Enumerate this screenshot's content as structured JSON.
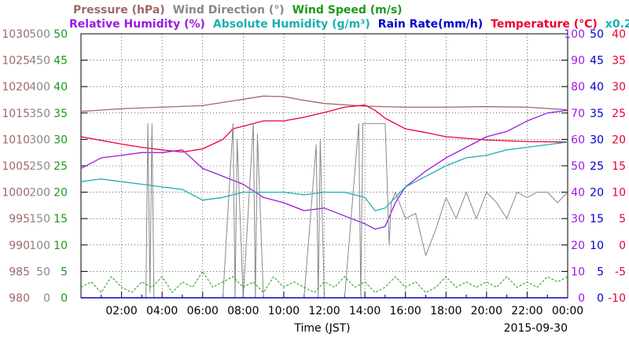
{
  "chart_data": {
    "type": "line",
    "date_label": "2015-09-30",
    "xlabel": "Time (JST)",
    "x_ticks": [
      "02:00",
      "04:00",
      "06:00",
      "08:00",
      "10:00",
      "12:00",
      "14:00",
      "16:00",
      "18:00",
      "20:00",
      "22:00",
      "00:00"
    ],
    "xlim": [
      0,
      24
    ],
    "grid": true,
    "legend_row1": [
      {
        "text": "Pressure (hPa)",
        "color": "#a06868"
      },
      {
        "text": "Wind Direction (°)",
        "color": "#888888"
      },
      {
        "text": "Wind Speed (m/s)",
        "color": "#1a9a1a"
      }
    ],
    "legend_row2": [
      {
        "text": "Relative Humidity (%)",
        "color": "#9a1ae0"
      },
      {
        "text": "Absolute Humidity (g/m³)",
        "color": "#1ab0b0"
      },
      {
        "text": "Rain Rate(mm/h)",
        "color": "#0000cc"
      },
      {
        "text": "Temperature (°C)",
        "color": "#ee0033"
      },
      {
        "text": "x0.2",
        "color": "#1ab0b0"
      }
    ],
    "axes": {
      "pressure": {
        "color": "#a06868",
        "ticks": [
          "980",
          "985",
          "990",
          "995",
          "1000",
          "1005",
          "1010",
          "1015",
          "1020",
          "1025",
          "1030"
        ]
      },
      "wind_direction": {
        "color": "#888888",
        "ticks": [
          "0",
          "50",
          "100",
          "150",
          "200",
          "250",
          "300",
          "350",
          "400",
          "450",
          "500"
        ]
      },
      "wind_speed": {
        "color": "#1a9a1a",
        "ticks": [
          "0",
          "5",
          "10",
          "15",
          "20",
          "25",
          "30",
          "35",
          "40",
          "45",
          "50"
        ]
      },
      "humidity": {
        "color": "#9a1ae0",
        "ticks": [
          "0",
          "10",
          "20",
          "30",
          "40",
          "50",
          "60",
          "70",
          "80",
          "90",
          "100"
        ]
      },
      "rain_rate": {
        "color": "#0000cc",
        "ticks": [
          "0",
          "5",
          "10",
          "15",
          "20",
          "25",
          "30",
          "35",
          "40",
          "45",
          "50"
        ]
      },
      "temperature": {
        "color": "#ee0033",
        "ticks": [
          "-10",
          "-5",
          "0",
          "5",
          "10",
          "15",
          "20",
          "25",
          "30",
          "35",
          "40"
        ]
      }
    },
    "series": [
      {
        "name": "Pressure (hPa)",
        "color": "#a06868",
        "x": [
          0,
          2,
          4,
          6,
          8,
          9,
          10,
          11,
          12,
          14,
          16,
          18,
          20,
          22,
          24
        ],
        "y": [
          1015.3,
          1015.8,
          1016.1,
          1016.4,
          1017.6,
          1018.2,
          1018.1,
          1017.4,
          1016.8,
          1016.3,
          1016.1,
          1016.1,
          1016.2,
          1016.1,
          1015.6
        ]
      },
      {
        "name": "Temperature (°C)",
        "color": "#ee0033",
        "x": [
          0,
          1,
          2,
          3,
          4,
          5,
          6,
          7,
          7.5,
          8,
          9,
          10,
          11,
          12,
          13,
          14,
          14.5,
          15,
          16,
          17,
          18,
          20,
          22,
          24
        ],
        "y": [
          20.5,
          19.8,
          19.1,
          18.5,
          18.0,
          17.6,
          18.2,
          20.0,
          22.0,
          22.5,
          23.5,
          23.5,
          24.2,
          25.1,
          26.1,
          26.5,
          25.5,
          24.0,
          22.0,
          21.3,
          20.5,
          19.9,
          19.6,
          19.5
        ]
      },
      {
        "name": "Relative Humidity (%)",
        "color": "#9a1ae0",
        "x": [
          0,
          1,
          2,
          3,
          4,
          5,
          6,
          7,
          8,
          9,
          10,
          11,
          12,
          13,
          14,
          14.5,
          15,
          15.5,
          16,
          17,
          18,
          19,
          20,
          21,
          22,
          23,
          24
        ],
        "y": [
          49,
          53,
          54,
          55,
          55,
          56,
          49,
          46,
          43,
          38,
          36,
          33,
          34,
          31,
          28,
          26,
          27,
          36,
          42,
          48,
          53,
          57,
          61,
          63,
          67,
          70,
          71
        ]
      },
      {
        "name": "Absolute Humidity (g/m³)",
        "color": "#1ab0b0",
        "x": [
          0,
          1,
          2,
          3,
          4,
          5,
          6,
          7,
          8,
          9,
          10,
          11,
          12,
          13,
          14,
          14.5,
          15,
          16,
          17,
          18,
          19,
          20,
          21,
          22,
          23,
          24
        ],
        "y": [
          44,
          45,
          44,
          43,
          42,
          41,
          37,
          38,
          40,
          40,
          40,
          39,
          40,
          40,
          38,
          33,
          34,
          42,
          46,
          50,
          53,
          54,
          56,
          57,
          58,
          59
        ]
      },
      {
        "name": "Wind Direction (°)",
        "color": "#888888",
        "x": [
          0,
          3.2,
          3.3,
          3.4,
          3.5,
          3.6,
          4,
          5,
          7,
          7.5,
          7.6,
          7.7,
          8,
          8.5,
          8.6,
          8.7,
          9,
          11,
          11.6,
          11.7,
          11.8,
          12,
          13,
          13.7,
          13.8,
          13.9,
          14,
          14.3,
          15,
          15.2,
          15.3,
          15.5,
          16,
          16.5,
          17,
          17.5,
          18,
          18.5,
          19,
          19.5,
          20,
          20.5,
          21,
          21.5,
          22,
          22.5,
          23,
          23.5,
          24
        ],
        "y": [
          0,
          0,
          330,
          10,
          330,
          0,
          0,
          0,
          0,
          330,
          0,
          300,
          0,
          330,
          0,
          310,
          0,
          0,
          290,
          0,
          300,
          0,
          0,
          330,
          0,
          330,
          330,
          330,
          330,
          100,
          180,
          200,
          150,
          160,
          80,
          130,
          190,
          150,
          200,
          150,
          200,
          180,
          150,
          200,
          190,
          200,
          200,
          180,
          200
        ]
      },
      {
        "name": "Wind Speed (m/s)",
        "color": "#1a9a1a",
        "x": [
          0,
          0.5,
          1,
          1.5,
          2,
          2.5,
          3,
          3.5,
          4,
          4.5,
          5,
          5.5,
          6,
          6.5,
          7,
          7.5,
          8,
          8.5,
          9,
          9.5,
          10,
          10.5,
          11,
          11.5,
          12,
          12.5,
          13,
          13.5,
          14,
          14.5,
          15,
          15.5,
          16,
          16.5,
          17,
          17.5,
          18,
          18.5,
          19,
          19.5,
          20,
          20.5,
          21,
          21.5,
          22,
          22.5,
          23,
          23.5,
          24
        ],
        "y": [
          2,
          3,
          1,
          4,
          2,
          1,
          3,
          2,
          4,
          1,
          3,
          2,
          5,
          2,
          3,
          4,
          2,
          3,
          1,
          4,
          2,
          3,
          2,
          1,
          3,
          2,
          4,
          2,
          3,
          1,
          2,
          4,
          2,
          3,
          1,
          2,
          4,
          2,
          3,
          2,
          3,
          2,
          4,
          2,
          3,
          2,
          4,
          3,
          4
        ]
      },
      {
        "name": "Rain Rate(mm/h)",
        "color": "#0000cc",
        "x": [
          0,
          24
        ],
        "y": [
          0,
          0
        ]
      }
    ]
  }
}
